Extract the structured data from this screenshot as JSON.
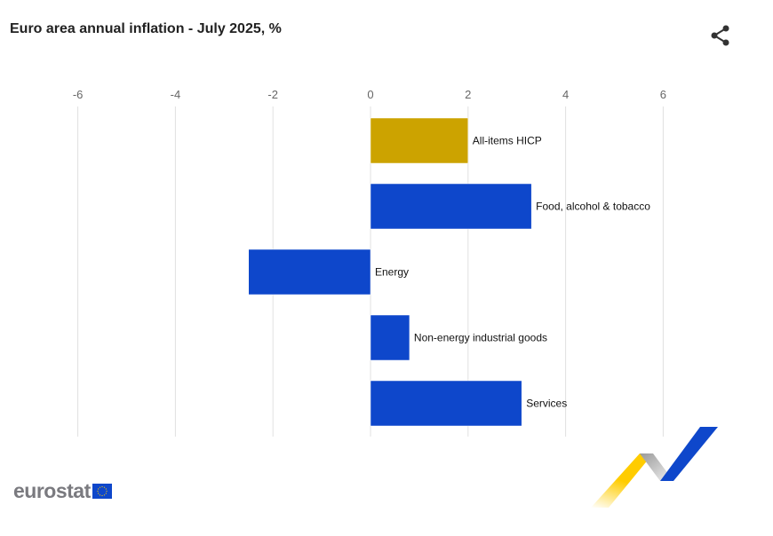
{
  "header": {
    "title": "Euro area annual inflation - July 2025, %"
  },
  "logo": {
    "text": "eurostat"
  },
  "colors": {
    "highlight": "#cca300",
    "bar": "#0e47cb",
    "grid": "#e0e0e0"
  },
  "chart_data": {
    "type": "bar",
    "orientation": "horizontal",
    "title": "Euro area annual inflation - July 2025, %",
    "categories": [
      "All-items HICP",
      "Food, alcohol & tobacco",
      "Energy",
      "Non-energy industrial goods",
      "Services"
    ],
    "values": [
      2.0,
      3.3,
      -2.5,
      0.8,
      3.1
    ],
    "highlight_index": 0,
    "xlim": [
      -6,
      7
    ],
    "xticks": [
      -6,
      -4,
      -2,
      0,
      2,
      4,
      6
    ],
    "xtick_labels": [
      "-6",
      "-4",
      "-2",
      "0",
      "2",
      "4",
      "6"
    ],
    "xaxis_position": "top",
    "grid": true,
    "xlabel": "",
    "ylabel": ""
  }
}
